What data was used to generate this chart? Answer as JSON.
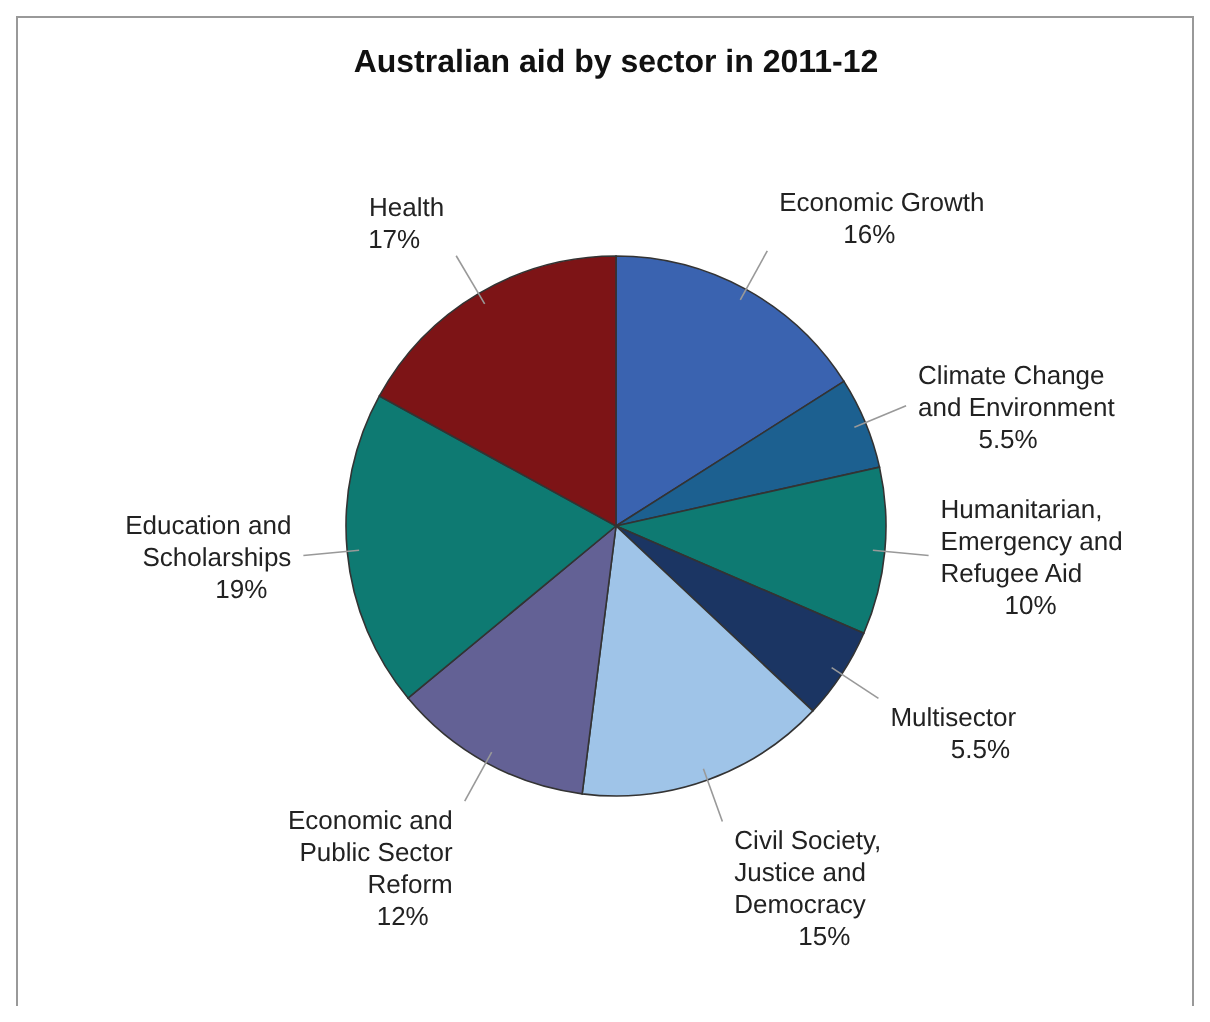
{
  "chart_data": {
    "type": "pie",
    "title": "Australian aid by sector in 2011-12",
    "categories": [
      "Economic Growth",
      "Climate Change and Environment",
      "Humanitarian, Emergency and Refugee Aid",
      "Multisector",
      "Civil Society, Justice and Democracy",
      "Economic and Public Sector Reform",
      "Education and Scholarships",
      "Health"
    ],
    "values": [
      16,
      5.5,
      10,
      5.5,
      15,
      12,
      19,
      17
    ],
    "value_labels": [
      "16%",
      "5.5%",
      "10%",
      "5.5%",
      "15%",
      "12%",
      "19%",
      "17%"
    ],
    "colors": [
      "#3a63b0",
      "#1c6090",
      "#0e7a72",
      "#1b3563",
      "#9fc4e8",
      "#636195",
      "#0e7a72",
      "#7d1416"
    ]
  }
}
